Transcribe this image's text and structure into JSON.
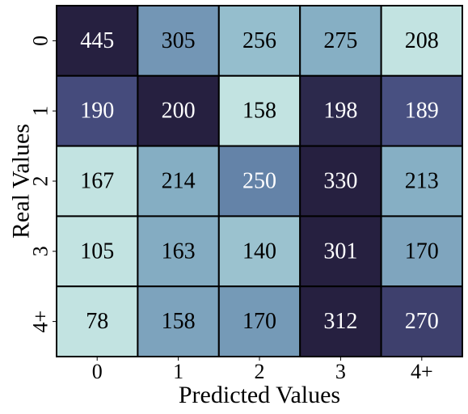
{
  "chart_data": {
    "type": "heatmap",
    "title": "",
    "xlabel": "Predicted Values",
    "ylabel": "Real Values",
    "x_categories": [
      "0",
      "1",
      "2",
      "3",
      "4+"
    ],
    "y_categories": [
      "0",
      "1",
      "2",
      "3",
      "4+"
    ],
    "matrix": [
      [
        445,
        305,
        256,
        275,
        208
      ],
      [
        190,
        200,
        158,
        198,
        189
      ],
      [
        167,
        214,
        250,
        330,
        213
      ],
      [
        105,
        163,
        140,
        301,
        170
      ],
      [
        78,
        158,
        170,
        312,
        270
      ]
    ],
    "colorscale": [
      "#c2e3e1",
      "#8bb5c8",
      "#6585aa",
      "#474d7f",
      "#262040"
    ],
    "row_normalized_color": true,
    "colorbar": false,
    "grid": true
  }
}
